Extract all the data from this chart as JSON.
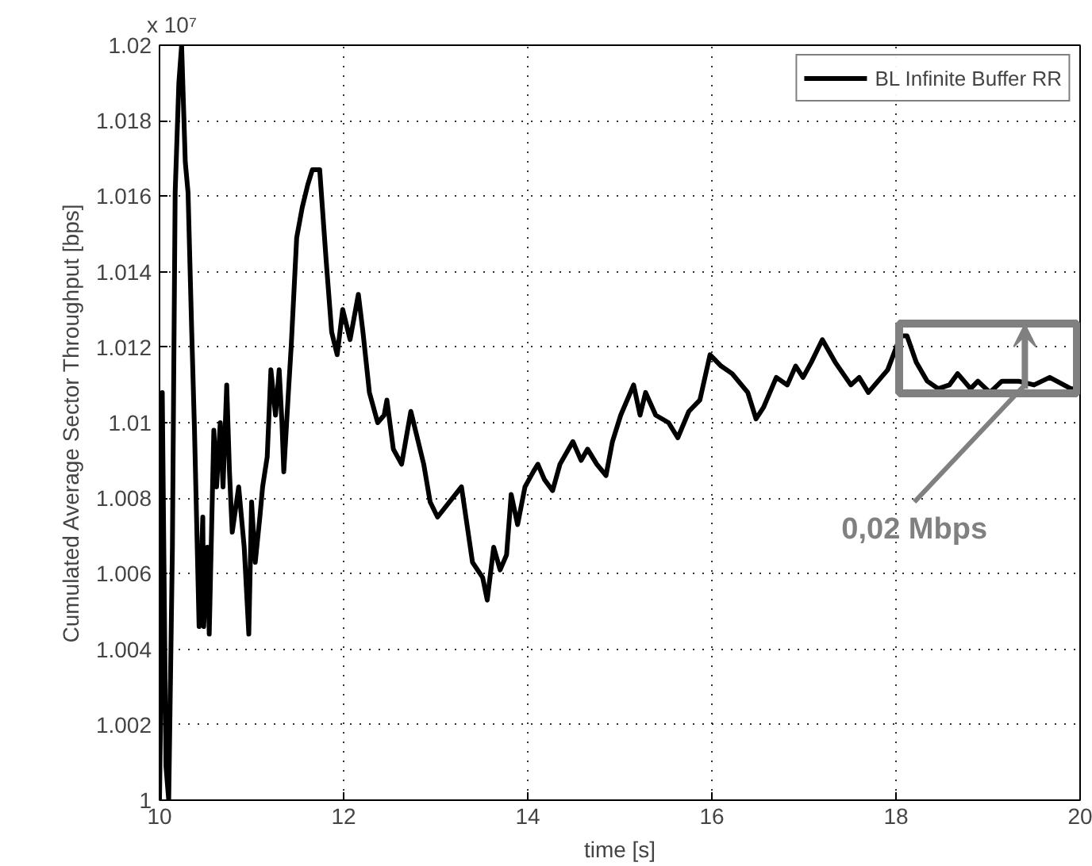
{
  "chart_data": {
    "type": "line",
    "title": "x 10⁷",
    "xlabel": "time [s]",
    "ylabel": "Cumulated Average Sector Throughput [bps]",
    "xlim": [
      10,
      20
    ],
    "xticks": [
      10,
      12,
      14,
      16,
      18,
      20
    ],
    "ylim": [
      1.0,
      1.02
    ],
    "yticks": [
      1,
      1.002,
      1.004,
      1.006,
      1.008,
      1.01,
      1.012,
      1.014,
      1.016,
      1.018,
      1.02
    ],
    "grid": true,
    "legend": "top right",
    "line_style": "solid",
    "annotations": [
      {
        "text": "0,02 Mbps",
        "x": 19.33,
        "y": 1.0111
      }
    ],
    "series": [
      {
        "name": "BL Infinite Buffer RR",
        "color": "#000000",
        "x": [
          10.0,
          10.02,
          10.03,
          10.07,
          10.1,
          10.14,
          10.17,
          10.21,
          10.24,
          10.28,
          10.31,
          10.35,
          10.38,
          10.43,
          10.47,
          10.48,
          10.52,
          10.54,
          10.59,
          10.62,
          10.66,
          10.69,
          10.73,
          10.76,
          10.79,
          10.86,
          10.92,
          10.97,
          11.0,
          11.04,
          11.09,
          11.12,
          11.17,
          11.21,
          11.26,
          11.3,
          11.33,
          11.35,
          11.4,
          11.43,
          11.49,
          11.55,
          11.61,
          11.66,
          11.74,
          11.81,
          11.87,
          11.93,
          11.99,
          12.07,
          12.16,
          12.21,
          12.28,
          12.37,
          12.44,
          12.47,
          12.54,
          12.63,
          12.73,
          12.78,
          12.87,
          12.94,
          13.02,
          13.28,
          13.4,
          13.51,
          13.56,
          13.63,
          13.7,
          13.77,
          13.82,
          13.89,
          13.97,
          14.06,
          14.11,
          14.18,
          14.27,
          14.35,
          14.49,
          14.58,
          14.65,
          14.75,
          14.85,
          14.92,
          15.01,
          15.15,
          15.22,
          15.28,
          15.39,
          15.53,
          15.63,
          15.75,
          15.87,
          15.98,
          16.1,
          16.22,
          16.39,
          16.48,
          16.56,
          16.7,
          16.82,
          16.91,
          16.99,
          17.08,
          17.2,
          17.34,
          17.51,
          17.6,
          17.7,
          17.77,
          17.91,
          18.05,
          18.12,
          18.22,
          18.34,
          18.46,
          18.58,
          18.67,
          18.81,
          18.89,
          19.02,
          19.15,
          19.33,
          19.5,
          19.67,
          19.9,
          19.98
        ],
        "values": [
          1.0,
          1.0038,
          1.0108,
          1.0009,
          1.0,
          1.0067,
          1.0161,
          1.019,
          1.02,
          1.0169,
          1.0161,
          1.0124,
          1.0098,
          1.0046,
          1.0075,
          1.0046,
          1.0067,
          1.0044,
          1.0098,
          1.0083,
          1.01,
          1.0083,
          1.011,
          1.0087,
          1.0071,
          1.0083,
          1.0067,
          1.0044,
          1.0079,
          1.0063,
          1.0075,
          1.0083,
          1.0091,
          1.0114,
          1.0102,
          1.0114,
          1.01,
          1.0087,
          1.0108,
          1.012,
          1.0149,
          1.0157,
          1.0163,
          1.0167,
          1.0167,
          1.0143,
          1.0124,
          1.0118,
          1.013,
          1.0122,
          1.0134,
          1.0124,
          1.0108,
          1.01,
          1.0102,
          1.0106,
          1.0093,
          1.0089,
          1.0103,
          1.0098,
          1.0089,
          1.0079,
          1.0075,
          1.0083,
          1.0063,
          1.0059,
          1.0053,
          1.0067,
          1.0061,
          1.0065,
          1.0081,
          1.0073,
          1.0083,
          1.0087,
          1.0089,
          1.0085,
          1.0082,
          1.0089,
          1.0095,
          1.009,
          1.0093,
          1.0089,
          1.0086,
          1.0095,
          1.0102,
          1.011,
          1.0102,
          1.0108,
          1.0102,
          1.01,
          1.0096,
          1.0103,
          1.0106,
          1.0118,
          1.0115,
          1.0113,
          1.0108,
          1.0101,
          1.0104,
          1.0112,
          1.011,
          1.0115,
          1.0112,
          1.0116,
          1.0122,
          1.0116,
          1.011,
          1.0112,
          1.0108,
          1.011,
          1.0114,
          1.0123,
          1.0123,
          1.0116,
          1.0111,
          1.0109,
          1.011,
          1.0113,
          1.0109,
          1.0111,
          1.0108,
          1.0111,
          1.0111,
          1.011,
          1.0112,
          1.0109,
          1.0109
        ]
      }
    ]
  }
}
